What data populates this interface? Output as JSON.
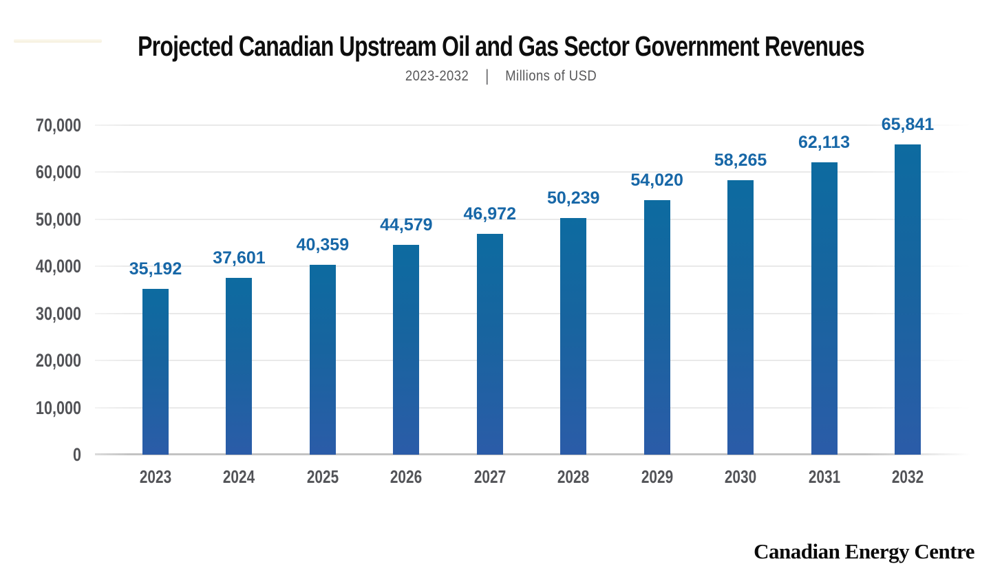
{
  "title": "Projected Canadian Upstream Oil and Gas Sector Government Revenues",
  "subtitle": {
    "period": "2023-2032",
    "separator": "|",
    "units": "Millions of USD"
  },
  "footer": {
    "brand": "Canadian Energy Centre"
  },
  "colors": {
    "bar_gradient_top": "#0d6ba0",
    "bar_gradient_bottom": "#2b5ca8",
    "value_label": "#1767a7",
    "axis_label": "#525357",
    "title": "#0e0e0e",
    "subtitle": "#59595b",
    "gridline": "#e9e9e9",
    "axis_baseline": "#c3c3c3",
    "background": "#ffffff"
  },
  "chart_data": {
    "type": "bar",
    "title": "Projected Canadian Upstream Oil and Gas Sector Government Revenues",
    "subtitle": "2023-2032 | Millions of USD",
    "xlabel": "",
    "ylabel": "Millions of USD",
    "categories": [
      "2023",
      "2024",
      "2025",
      "2026",
      "2027",
      "2028",
      "2029",
      "2030",
      "2031",
      "2032"
    ],
    "values": [
      35192,
      37601,
      40359,
      44579,
      46972,
      50239,
      54020,
      58265,
      62113,
      65841
    ],
    "value_labels": [
      "35,192",
      "37,601",
      "40,359",
      "44,579",
      "46,972",
      "50,239",
      "54,020",
      "58,265",
      "62,113",
      "65,841"
    ],
    "ylim": [
      0,
      70000
    ],
    "yticks": [
      0,
      10000,
      20000,
      30000,
      40000,
      50000,
      60000,
      70000
    ],
    "ytick_labels": [
      "0",
      "10,000",
      "20,000",
      "30,000",
      "40,000",
      "50,000",
      "60,000",
      "70,000"
    ],
    "grid": true,
    "legend": false,
    "bar_label_position": "above"
  }
}
